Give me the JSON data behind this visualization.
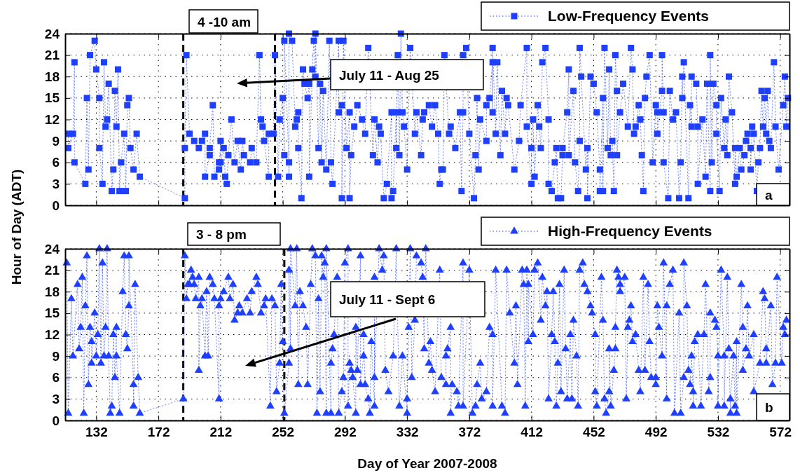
{
  "chart_data": [
    {
      "type": "line",
      "marker": "square",
      "line_style": "dotted",
      "ylabel": "Hour of Day (ADT)",
      "xlim": [
        112,
        578
      ],
      "ylim": [
        0,
        24
      ],
      "xticks": [
        132,
        172,
        212,
        252,
        292,
        332,
        372,
        412,
        452,
        492,
        532,
        572
      ],
      "yticks": [
        0,
        3,
        6,
        9,
        12,
        15,
        18,
        21,
        24
      ],
      "grid": true,
      "legend": "top right",
      "tick_labels": "y",
      "ref_lines": [
        {
          "axis": "x",
          "value": 188,
          "color": "#000000",
          "line_style": "dashed"
        },
        {
          "axis": "x",
          "value": 247,
          "color": "#000000",
          "line_style": "dashed"
        }
      ],
      "annotations": [
        "4 -10 am",
        "July 11 - Aug 25",
        "a"
      ],
      "series": [
        {
          "name": "Low-Frequency Events",
          "color": "#1f3fff",
          "x": [
            114,
            114,
            117,
            118,
            118,
            125,
            126,
            127,
            128,
            131,
            132,
            134,
            134,
            136,
            137,
            138,
            139,
            140,
            142,
            143,
            144,
            145,
            146,
            147,
            148,
            150,
            151,
            152,
            153,
            154,
            156,
            158,
            160,
            189,
            189,
            190,
            192,
            195,
            198,
            200,
            202,
            202,
            205,
            205,
            207,
            208,
            211,
            211,
            212,
            212,
            214,
            215,
            216,
            217,
            219,
            221,
            223,
            225,
            226,
            227,
            231,
            232,
            235,
            237,
            238,
            239,
            240,
            243,
            243,
            246,
            247,
            249,
            250,
            252,
            253,
            253,
            256,
            256,
            256,
            258,
            260,
            261,
            262,
            262,
            264,
            265,
            266,
            268,
            269,
            269,
            271,
            272,
            273,
            273,
            275,
            276,
            277,
            278,
            280,
            282,
            283,
            284,
            288,
            288,
            290,
            290,
            291,
            293,
            295,
            295,
            296,
            298,
            300,
            303,
            305,
            307,
            310,
            311,
            313,
            314,
            315,
            317,
            319,
            322,
            322,
            323,
            325,
            325,
            326,
            327,
            328,
            329,
            330,
            332,
            334,
            337,
            338,
            341,
            342,
            343,
            346,
            348,
            350,
            352,
            353,
            354,
            355,
            356,
            359,
            360,
            363,
            366,
            367,
            368,
            368,
            370,
            372,
            375,
            376,
            377,
            378,
            379,
            383,
            383,
            385,
            387,
            387,
            387,
            389,
            390,
            392,
            393,
            395,
            396,
            397,
            401,
            404,
            405,
            409,
            409,
            412,
            412,
            413,
            414,
            416,
            417,
            418,
            419,
            421,
            423,
            423,
            425,
            427,
            428,
            429,
            431,
            432,
            432,
            435,
            436,
            436,
            439,
            440,
            442,
            443,
            443,
            444,
            447,
            448,
            448,
            450,
            452,
            454,
            456,
            456,
            458,
            458,
            459,
            461,
            462,
            463,
            464,
            465,
            466,
            467,
            467,
            469,
            471,
            474,
            476,
            477,
            478,
            479,
            481,
            482,
            483,
            484,
            485,
            486,
            488,
            490,
            492,
            493,
            493,
            496,
            496,
            497,
            497,
            500,
            501,
            503,
            505,
            507,
            508,
            509,
            509,
            510,
            513,
            514,
            515,
            515,
            518,
            519,
            519,
            522,
            524,
            525,
            527,
            527,
            528,
            529,
            531,
            531,
            533,
            534,
            536,
            537,
            538,
            539,
            541,
            543,
            543,
            544,
            546,
            547,
            549,
            550,
            551,
            553,
            553,
            554,
            555,
            557,
            558,
            559,
            560,
            561,
            562,
            563,
            564,
            565,
            566,
            568,
            569,
            571,
            574,
            575,
            576,
            577
          ],
          "values": [
            10,
            8,
            10,
            20,
            6,
            3,
            15,
            5,
            21,
            23,
            19,
            15,
            8,
            3,
            20,
            11,
            12,
            17,
            2,
            5,
            16,
            11,
            19,
            2,
            6,
            10,
            2,
            14,
            15,
            8,
            5,
            10,
            4,
            1,
            8,
            21,
            10,
            9,
            8,
            9,
            10,
            4,
            7,
            8,
            14,
            4,
            6,
            5,
            9,
            6,
            8,
            4,
            3,
            7,
            12,
            6,
            9,
            5,
            9,
            7,
            6,
            8,
            6,
            21,
            12,
            11,
            9,
            4,
            10,
            10,
            21,
            4,
            12,
            15,
            7,
            23,
            6,
            4,
            24,
            23,
            11,
            12,
            13,
            8,
            1,
            19,
            17,
            15,
            17,
            4,
            19,
            23,
            18,
            24,
            8,
            17,
            6,
            16,
            5,
            23,
            6,
            3,
            23,
            13,
            14,
            1,
            23,
            8,
            13,
            1,
            7,
            11,
            14,
            12,
            10,
            22,
            7,
            12,
            6,
            11,
            10,
            1,
            3,
            13,
            1,
            2,
            13,
            8,
            21,
            7,
            24,
            13,
            11,
            5,
            22,
            10,
            13,
            7,
            12,
            13,
            14,
            11,
            14,
            10,
            3,
            5,
            5,
            21,
            10,
            11,
            8,
            13,
            2,
            13,
            21,
            22,
            10,
            1,
            7,
            15,
            5,
            12,
            9,
            14,
            15,
            20,
            13,
            22,
            10,
            20,
            7,
            16,
            10,
            15,
            14,
            5,
            9,
            14,
            22,
            11,
            3,
            8,
            12,
            4,
            14,
            11,
            8,
            20,
            22,
            12,
            3,
            2,
            6,
            8,
            1,
            1,
            7,
            8,
            13,
            19,
            7,
            16,
            6,
            2,
            9,
            22,
            18,
            5,
            8,
            1,
            18,
            17,
            13,
            5,
            2,
            15,
            2,
            22,
            8,
            19,
            7,
            9,
            2,
            21,
            16,
            7,
            13,
            17,
            11,
            22,
            19,
            10,
            11,
            14,
            12,
            7,
            2,
            15,
            18,
            21,
            6,
            14,
            13,
            10,
            16,
            21,
            13,
            6,
            1,
            16,
            12,
            13,
            1,
            6,
            18,
            15,
            20,
            1,
            14,
            11,
            18,
            17,
            11,
            3,
            12,
            4,
            17,
            2,
            21,
            6,
            17,
            14,
            10,
            2,
            15,
            8,
            12,
            7,
            18,
            13,
            3,
            8,
            4,
            8,
            5,
            7,
            9,
            10,
            8,
            5,
            11,
            10,
            2,
            6,
            8,
            16,
            11,
            15,
            10,
            16,
            9,
            8,
            20,
            11,
            5,
            14,
            18,
            11,
            15
          ]
        }
      ]
    },
    {
      "type": "line",
      "marker": "triangle",
      "line_style": "dotted",
      "xlabel": "Day of Year 2007-2008",
      "xlim": [
        112,
        578
      ],
      "ylim": [
        0,
        24
      ],
      "xticks": [
        132,
        172,
        212,
        252,
        292,
        332,
        372,
        412,
        452,
        492,
        532,
        572
      ],
      "yticks": [
        0,
        3,
        6,
        9,
        12,
        15,
        18,
        21,
        24
      ],
      "grid": true,
      "legend": "top right",
      "ref_lines": [
        {
          "axis": "x",
          "value": 188,
          "color": "#000000",
          "line_style": "dashed"
        },
        {
          "axis": "x",
          "value": 253,
          "color": "#000000",
          "line_style": "dashed"
        }
      ],
      "annotations": [
        "3 - 8 pm",
        "July 11 - Sept 6",
        "b"
      ],
      "series": [
        {
          "name": "High-Frequency Events",
          "color": "#1f3fff",
          "x": [
            113,
            114,
            116,
            117,
            120,
            121,
            122,
            123,
            124,
            125,
            126,
            127,
            128,
            129,
            129,
            131,
            132,
            133,
            134,
            135,
            136,
            137,
            138,
            139,
            140,
            141,
            142,
            143,
            144,
            145,
            145,
            147,
            149,
            150,
            151,
            152,
            153,
            153,
            156,
            156,
            157,
            159,
            160,
            188,
            189,
            190,
            191,
            192,
            193,
            194,
            195,
            196,
            198,
            198,
            199,
            200,
            202,
            203,
            204,
            205,
            207,
            208,
            211,
            211,
            212,
            214,
            217,
            218,
            220,
            221,
            223,
            224,
            226,
            229,
            231,
            232,
            235,
            236,
            238,
            240,
            241,
            244,
            245,
            247,
            248,
            250,
            251,
            252,
            253,
            256,
            256,
            257,
            257,
            260,
            261,
            262,
            263,
            265,
            267,
            268,
            270,
            271,
            273,
            274,
            275,
            276,
            277,
            278,
            279,
            280,
            280,
            283,
            283,
            284,
            285,
            287,
            288,
            290,
            291,
            292,
            294,
            294,
            295,
            296,
            297,
            299,
            299,
            300,
            302,
            302,
            304,
            304,
            305,
            307,
            308,
            309,
            311,
            311,
            311,
            314,
            316,
            317,
            318,
            320,
            323,
            325,
            327,
            329,
            332,
            332,
            333,
            334,
            335,
            337,
            338,
            341,
            342,
            343,
            344,
            346,
            347,
            348,
            350,
            353,
            354,
            357,
            357,
            358,
            360,
            360,
            361,
            364,
            365,
            368,
            368,
            372,
            374,
            376,
            377,
            379,
            380,
            383,
            385,
            387,
            387,
            389,
            393,
            395,
            396,
            398,
            401,
            402,
            403,
            406,
            407,
            408,
            409,
            410,
            410,
            413,
            414,
            416,
            418,
            419,
            421,
            422,
            423,
            425,
            426,
            427,
            428,
            429,
            430,
            431,
            433,
            434,
            435,
            437,
            438,
            439,
            441,
            442,
            443,
            445,
            446,
            448,
            450,
            451,
            453,
            453,
            454,
            457,
            458,
            459,
            460,
            462,
            462,
            463,
            465,
            466,
            466,
            467,
            468,
            469,
            469,
            472,
            473,
            474,
            475,
            476,
            477,
            479,
            481,
            482,
            484,
            485,
            487,
            488,
            489,
            492,
            492,
            493,
            494,
            496,
            497,
            499,
            499,
            501,
            503,
            504,
            507,
            508,
            510,
            510,
            512,
            513,
            514,
            515,
            516,
            516,
            517,
            519,
            521,
            523,
            524,
            526,
            527,
            527,
            530,
            531,
            532,
            532,
            534,
            536,
            536,
            538,
            539,
            540,
            540,
            542,
            543,
            544,
            544,
            547,
            548,
            548,
            550,
            551,
            552,
            555,
            555,
            559,
            561,
            562,
            563,
            563,
            566,
            567,
            569,
            570,
            573,
            574,
            575,
            576
          ],
          "values": [
            22,
            1,
            17,
            9,
            19,
            10,
            13,
            20,
            1,
            16,
            23,
            5,
            13,
            11,
            8,
            15,
            9,
            12,
            24,
            8,
            22,
            9,
            13,
            24,
            9,
            1,
            2,
            12,
            6,
            13,
            9,
            1,
            18,
            23,
            12,
            10,
            16,
            23,
            5,
            2,
            19,
            6,
            1,
            3,
            23,
            17,
            19,
            19,
            21,
            20,
            19,
            17,
            20,
            7,
            16,
            17,
            9,
            18,
            9,
            20,
            19,
            17,
            3,
            16,
            17,
            18,
            20,
            17,
            19,
            14,
            15,
            16,
            15,
            17,
            15,
            18,
            20,
            19,
            15,
            16,
            17,
            2,
            17,
            16,
            4,
            8,
            19,
            11,
            1,
            8,
            21,
            10,
            24,
            16,
            24,
            5,
            18,
            16,
            13,
            5,
            19,
            24,
            23,
            1,
            17,
            4,
            23,
            20,
            22,
            1,
            24,
            1,
            8,
            10,
            12,
            20,
            1,
            4,
            6,
            22,
            24,
            2,
            8,
            7,
            6,
            1,
            13,
            7,
            23,
            5,
            9,
            12,
            5,
            3,
            1,
            11,
            2,
            20,
            6,
            24,
            21,
            23,
            7,
            4,
            9,
            24,
            2,
            9,
            1,
            3,
            13,
            24,
            6,
            14,
            23,
            22,
            20,
            10,
            24,
            8,
            11,
            7,
            4,
            21,
            6,
            5,
            9,
            10,
            13,
            1,
            5,
            4,
            2,
            22,
            2,
            21,
            1,
            2,
            5,
            8,
            3,
            4,
            13,
            12,
            2,
            21,
            2,
            1,
            21,
            15,
            8,
            16,
            5,
            21,
            19,
            2,
            21,
            11,
            19,
            12,
            21,
            22,
            14,
            20,
            16,
            18,
            3,
            12,
            18,
            11,
            2,
            8,
            19,
            4,
            21,
            10,
            3,
            12,
            3,
            14,
            9,
            2,
            21,
            22,
            19,
            18,
            16,
            15,
            12,
            4,
            2,
            20,
            14,
            3,
            1,
            4,
            10,
            2,
            7,
            10,
            13,
            21,
            20,
            19,
            18,
            20,
            3,
            13,
            14,
            16,
            11,
            12,
            7,
            4,
            20,
            7,
            19,
            11,
            6,
            6,
            5,
            16,
            13,
            9,
            22,
            3,
            16,
            19,
            21,
            1,
            15,
            1,
            6,
            22,
            16,
            7,
            5,
            9,
            4,
            2,
            11,
            12,
            2,
            12,
            19,
            4,
            6,
            15,
            14,
            13,
            9,
            2,
            21,
            9,
            2,
            20,
            10,
            1,
            3,
            9,
            2,
            11,
            1,
            19,
            13,
            7,
            10,
            16,
            9,
            12,
            4,
            8,
            18,
            17,
            10,
            8,
            16,
            5,
            8,
            20,
            8,
            13,
            12,
            14
          ]
        }
      ]
    }
  ]
}
